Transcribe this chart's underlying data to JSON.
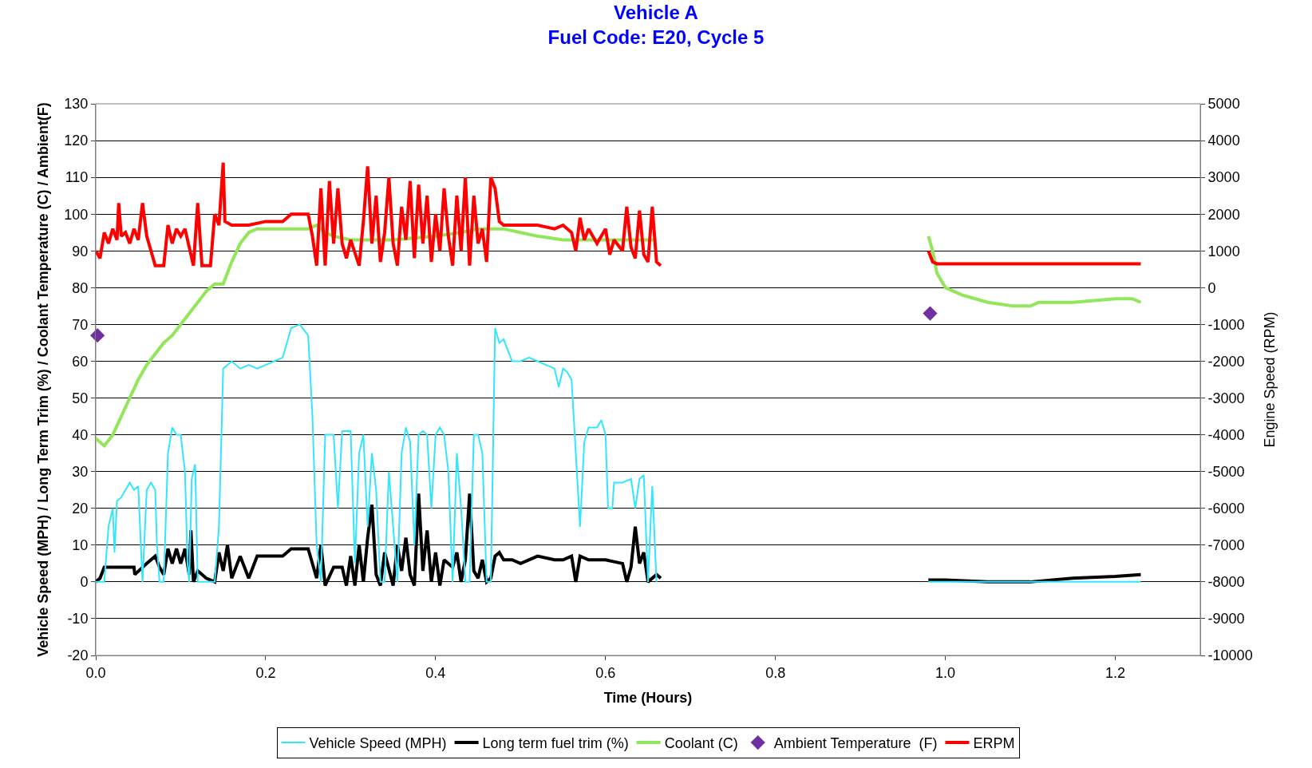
{
  "chart_data": {
    "type": "line",
    "title": "Vehicle A",
    "subtitle": "Fuel Code: E20, Cycle 5",
    "xlabel": "Time (Hours)",
    "ylabel": "Vehicle Speed (MPH) / Long Term Trim (%) / Coolant Temperature (C) / Ambient(F)",
    "y2label": "Engine Speed (RPM)",
    "xlim": [
      0,
      1.3
    ],
    "xticks": [
      {
        "value": 0,
        "label": "0.0"
      },
      0.2,
      0.4,
      0.6,
      0.8,
      {
        "value": 1,
        "label": "1.0"
      },
      1.2
    ],
    "ylim": [
      -20,
      130
    ],
    "yticks": [
      -20,
      -10,
      0,
      10,
      20,
      30,
      40,
      50,
      60,
      70,
      80,
      90,
      100,
      110,
      120,
      130
    ],
    "y2lim": [
      -10000,
      5000
    ],
    "y2ticks": [
      -10000,
      -9000,
      -8000,
      -7000,
      -6000,
      -5000,
      -4000,
      -3000,
      -2000,
      -1000,
      0,
      1000,
      2000,
      3000,
      4000,
      5000
    ],
    "grid": "y",
    "legend": "bottom",
    "marker": "none",
    "line_style": "solid",
    "series": [
      {
        "name": "Vehicle Speed (MPH)",
        "color": "#33e6ff",
        "x": [
          0.0,
          0.01,
          0.015,
          0.02,
          0.022,
          0.025,
          0.03,
          0.035,
          0.04,
          0.045,
          0.05,
          0.055,
          0.06,
          0.065,
          0.07,
          0.072,
          0.075,
          0.08,
          0.085,
          0.09,
          0.095,
          0.1,
          0.105,
          0.108,
          0.11,
          0.113,
          0.117,
          0.12,
          0.14,
          0.145,
          0.15,
          0.16,
          0.17,
          0.18,
          0.19,
          0.2,
          0.21,
          0.22,
          0.225,
          0.23,
          0.24,
          0.25,
          0.255,
          0.26,
          0.265,
          0.27,
          0.28,
          0.285,
          0.29,
          0.3,
          0.305,
          0.31,
          0.315,
          0.32,
          0.325,
          0.33,
          0.335,
          0.34,
          0.345,
          0.35,
          0.355,
          0.36,
          0.365,
          0.37,
          0.375,
          0.38,
          0.385,
          0.39,
          0.395,
          0.4,
          0.405,
          0.41,
          0.415,
          0.42,
          0.425,
          0.43,
          0.435,
          0.44,
          0.445,
          0.45,
          0.455,
          0.46,
          0.465,
          0.47,
          0.475,
          0.48,
          0.49,
          0.5,
          0.51,
          0.52,
          0.53,
          0.54,
          0.545,
          0.55,
          0.555,
          0.56,
          0.565,
          0.57,
          0.575,
          0.58,
          0.59,
          0.595,
          0.6,
          0.603,
          0.608,
          0.61,
          0.62,
          0.63,
          0.635,
          0.64,
          0.645,
          0.65,
          0.655,
          0.66,
          0.8,
          0.98,
          1.23
        ],
        "values": [
          0,
          0,
          15,
          20,
          8,
          22,
          23,
          25,
          27,
          25,
          26,
          0,
          25,
          27,
          25,
          10,
          0,
          0,
          35,
          42,
          40,
          40,
          30,
          5,
          0,
          28,
          32,
          0,
          0,
          15,
          58,
          60,
          58,
          59,
          58,
          59,
          60,
          61,
          65,
          69,
          70,
          67,
          45,
          10,
          0,
          40,
          40,
          20,
          41,
          41,
          5,
          35,
          40,
          15,
          35,
          25,
          0,
          0,
          30,
          15,
          0,
          35,
          42,
          38,
          10,
          40,
          41,
          40,
          20,
          40,
          42,
          40,
          30,
          0,
          35,
          20,
          0,
          0,
          40,
          40,
          35,
          0,
          0,
          69,
          65,
          66,
          60,
          60,
          61,
          60,
          59,
          58,
          53,
          58,
          57,
          55,
          35,
          15,
          38,
          42,
          42,
          44,
          40,
          20,
          20,
          27,
          27,
          28,
          20,
          28,
          29,
          0,
          26,
          0,
          null,
          0,
          0
        ]
      },
      {
        "name": "Long term fuel trim (%)",
        "color": "#000000",
        "x": [
          0.0,
          0.005,
          0.01,
          0.045,
          0.046,
          0.06,
          0.07,
          0.075,
          0.08,
          0.085,
          0.09,
          0.095,
          0.1,
          0.105,
          0.11,
          0.112,
          0.115,
          0.12,
          0.13,
          0.14,
          0.145,
          0.15,
          0.155,
          0.16,
          0.17,
          0.18,
          0.19,
          0.2,
          0.22,
          0.23,
          0.25,
          0.26,
          0.265,
          0.27,
          0.28,
          0.29,
          0.295,
          0.3,
          0.305,
          0.31,
          0.315,
          0.32,
          0.325,
          0.33,
          0.335,
          0.34,
          0.35,
          0.355,
          0.36,
          0.365,
          0.37,
          0.375,
          0.38,
          0.385,
          0.39,
          0.395,
          0.4,
          0.405,
          0.41,
          0.42,
          0.425,
          0.43,
          0.435,
          0.44,
          0.445,
          0.45,
          0.455,
          0.46,
          0.465,
          0.47,
          0.475,
          0.48,
          0.49,
          0.5,
          0.52,
          0.54,
          0.55,
          0.56,
          0.565,
          0.57,
          0.58,
          0.6,
          0.62,
          0.625,
          0.63,
          0.635,
          0.64,
          0.645,
          0.65,
          0.66,
          0.665,
          0.8,
          0.98,
          1.0,
          1.05,
          1.1,
          1.15,
          1.2,
          1.23
        ],
        "values": [
          0,
          1,
          4,
          4,
          2,
          5,
          7,
          4,
          2,
          9,
          5,
          9,
          5,
          9,
          2,
          14,
          0,
          3,
          1,
          0,
          8,
          3,
          10,
          1,
          7,
          1,
          7,
          7,
          7,
          9,
          9,
          1,
          10,
          -1,
          4,
          4,
          -1,
          7,
          -1,
          10,
          0,
          12,
          21,
          2,
          -1,
          8,
          -1,
          10,
          3,
          12,
          2,
          -1,
          24,
          3,
          14,
          0,
          8,
          -1,
          6,
          4,
          8,
          0,
          6,
          24,
          3,
          1,
          6,
          0,
          1,
          7,
          8,
          6,
          6,
          5,
          7,
          6,
          6,
          7,
          0,
          7,
          6,
          6,
          5,
          0,
          4,
          15,
          5,
          8,
          0,
          2,
          1,
          null,
          0.5,
          0.5,
          0,
          0,
          1,
          1.5,
          2
        ]
      },
      {
        "name": "Coolant (C)",
        "color": "#92e65a",
        "x": [
          0.0,
          0.01,
          0.02,
          0.03,
          0.04,
          0.05,
          0.06,
          0.07,
          0.08,
          0.09,
          0.1,
          0.11,
          0.12,
          0.13,
          0.14,
          0.15,
          0.16,
          0.17,
          0.18,
          0.19,
          0.2,
          0.22,
          0.25,
          0.26,
          0.27,
          0.28,
          0.3,
          0.35,
          0.4,
          0.43,
          0.45,
          0.48,
          0.5,
          0.52,
          0.55,
          0.6,
          0.65,
          0.66,
          0.8,
          0.98,
          0.985,
          0.99,
          1.0,
          1.02,
          1.05,
          1.08,
          1.1,
          1.11,
          1.15,
          1.2,
          1.22,
          1.23
        ],
        "values": [
          39,
          37,
          40,
          45,
          50,
          55,
          59,
          62,
          65,
          67,
          70,
          73,
          76,
          79,
          81,
          81,
          87,
          92,
          95,
          96,
          96,
          96,
          96,
          97,
          95,
          94,
          93,
          93,
          94,
          95,
          96,
          96,
          95,
          94,
          93,
          93,
          93,
          93,
          null,
          94,
          90,
          84,
          80,
          78,
          76,
          75,
          75,
          76,
          76,
          77,
          77,
          76
        ]
      },
      {
        "name": "Ambient Temperature  (F)",
        "color": "#7030a0",
        "type": "scatter",
        "marker": "diamond",
        "x": [
          0.002,
          0.982
        ],
        "values": [
          67,
          73
        ]
      },
      {
        "name": "ERPM",
        "color": "#ff0000",
        "axis": "y2",
        "x": [
          0.0,
          0.005,
          0.01,
          0.015,
          0.02,
          0.025,
          0.027,
          0.03,
          0.035,
          0.04,
          0.045,
          0.05,
          0.055,
          0.06,
          0.065,
          0.07,
          0.08,
          0.085,
          0.09,
          0.095,
          0.1,
          0.105,
          0.11,
          0.115,
          0.12,
          0.125,
          0.13,
          0.135,
          0.14,
          0.145,
          0.15,
          0.152,
          0.16,
          0.18,
          0.2,
          0.22,
          0.23,
          0.25,
          0.255,
          0.26,
          0.265,
          0.27,
          0.275,
          0.28,
          0.285,
          0.29,
          0.295,
          0.3,
          0.31,
          0.315,
          0.32,
          0.325,
          0.33,
          0.335,
          0.34,
          0.345,
          0.35,
          0.355,
          0.36,
          0.365,
          0.37,
          0.375,
          0.38,
          0.385,
          0.39,
          0.395,
          0.4,
          0.405,
          0.41,
          0.415,
          0.42,
          0.425,
          0.43,
          0.435,
          0.44,
          0.445,
          0.45,
          0.455,
          0.46,
          0.465,
          0.47,
          0.475,
          0.48,
          0.5,
          0.52,
          0.54,
          0.55,
          0.56,
          0.565,
          0.57,
          0.575,
          0.58,
          0.59,
          0.6,
          0.605,
          0.61,
          0.62,
          0.625,
          0.63,
          0.635,
          0.64,
          0.645,
          0.65,
          0.655,
          0.66,
          0.665,
          0.8,
          0.98,
          0.985,
          0.99,
          1.05,
          1.1,
          1.15,
          1.2,
          1.23
        ],
        "values": [
          1000,
          800,
          1500,
          1200,
          1600,
          1300,
          2300,
          1400,
          1500,
          1200,
          1600,
          1300,
          2300,
          1400,
          1000,
          600,
          600,
          1700,
          1200,
          1600,
          1400,
          1600,
          1100,
          600,
          2300,
          600,
          600,
          600,
          2000,
          1700,
          3400,
          1800,
          1700,
          1700,
          1800,
          1800,
          2000,
          2000,
          1400,
          600,
          2700,
          600,
          2900,
          1200,
          2700,
          1200,
          800,
          1300,
          600,
          1800,
          3300,
          1200,
          2500,
          700,
          1500,
          3000,
          1200,
          600,
          2200,
          1300,
          2900,
          800,
          2800,
          1200,
          2500,
          700,
          2000,
          1000,
          2700,
          1400,
          600,
          2500,
          1000,
          3000,
          600,
          2500,
          1200,
          1600,
          700,
          3000,
          2700,
          1800,
          1700,
          1700,
          1700,
          1600,
          1700,
          1500,
          1000,
          1900,
          1300,
          1600,
          1200,
          1600,
          900,
          1300,
          1000,
          2200,
          1100,
          800,
          2100,
          900,
          700,
          2200,
          700,
          600,
          null,
          1000,
          700,
          650,
          650,
          650,
          650,
          650,
          650
        ]
      }
    ]
  }
}
